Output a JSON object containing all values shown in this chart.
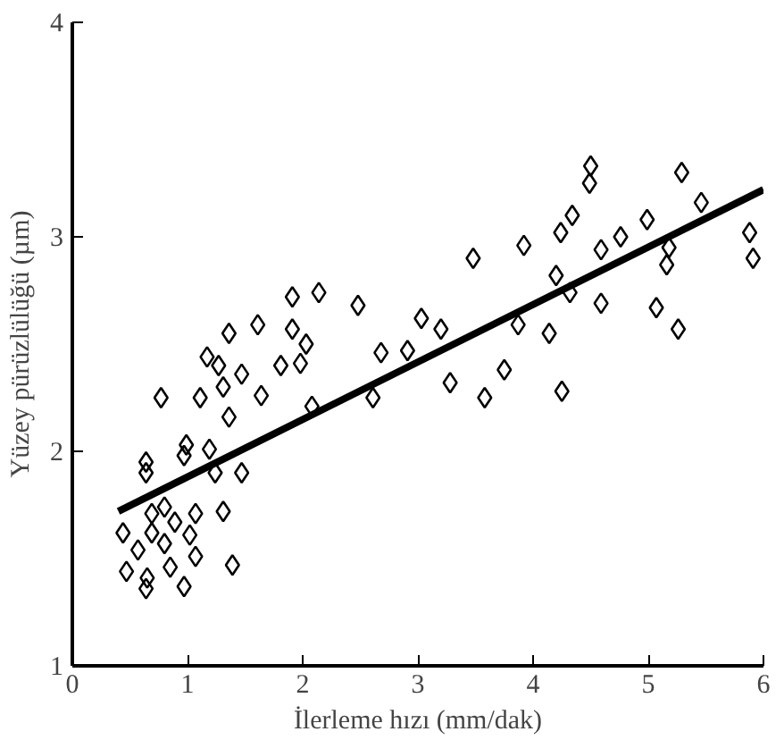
{
  "chart_data": {
    "type": "scatter",
    "xlabel": "İlerleme hızı (mm/dak)",
    "ylabel": "Yüzey pürüzlülüğü (µm)",
    "xlim": [
      0,
      6
    ],
    "ylim": [
      1,
      4
    ],
    "xticks": [
      0,
      1,
      2,
      3,
      4,
      5,
      6
    ],
    "yticks": [
      1,
      2,
      3,
      4
    ],
    "grid": false,
    "series": [
      {
        "color": "#000000",
        "marker": "diamond",
        "x": [
          4.5,
          4.49,
          5.29,
          5.46,
          5.88,
          5.91,
          4.34,
          4.24,
          4.99,
          4.76,
          4.59,
          5.18,
          5.16,
          3.92,
          3.48,
          4.2,
          4.32,
          4.59,
          5.07,
          5.26,
          2.14,
          2.48,
          2.03,
          3.03,
          3.2,
          2.68,
          2.91,
          3.87,
          4.14,
          3.28,
          3.75,
          3.58,
          4.25,
          2.61,
          2.08,
          1.91,
          1.61,
          1.36,
          1.17,
          1.91,
          1.98,
          1.81,
          1.47,
          1.27,
          0.77,
          1.11,
          1.31,
          1.64,
          1.36,
          0.99,
          1.19,
          0.64,
          0.64,
          0.97,
          1.24,
          1.47,
          0.44,
          0.69,
          0.89,
          1.07,
          1.31,
          0.57,
          0.8,
          1.02,
          0.69,
          0.47,
          0.65,
          0.85,
          1.07,
          1.39,
          0.64,
          0.97,
          0.8
        ],
        "values": [
          3.33,
          3.25,
          3.3,
          3.16,
          3.02,
          2.9,
          3.1,
          3.02,
          3.08,
          3.0,
          2.94,
          2.95,
          2.87,
          2.96,
          2.9,
          2.82,
          2.74,
          2.69,
          2.67,
          2.57,
          2.74,
          2.68,
          2.5,
          2.62,
          2.57,
          2.46,
          2.47,
          2.59,
          2.55,
          2.32,
          2.38,
          2.25,
          2.28,
          2.25,
          2.21,
          2.72,
          2.59,
          2.55,
          2.44,
          2.57,
          2.41,
          2.4,
          2.36,
          2.4,
          2.25,
          2.25,
          2.3,
          2.26,
          2.16,
          2.03,
          2.01,
          1.95,
          1.9,
          1.98,
          1.9,
          1.9,
          1.62,
          1.71,
          1.67,
          1.71,
          1.72,
          1.54,
          1.57,
          1.61,
          1.62,
          1.44,
          1.41,
          1.46,
          1.51,
          1.47,
          1.36,
          1.37,
          1.74
        ]
      },
      {
        "type": "line",
        "color": "#000000",
        "line_style": "solid",
        "x": [
          0.4,
          6
        ],
        "values": [
          1.72,
          3.22
        ]
      }
    ]
  }
}
